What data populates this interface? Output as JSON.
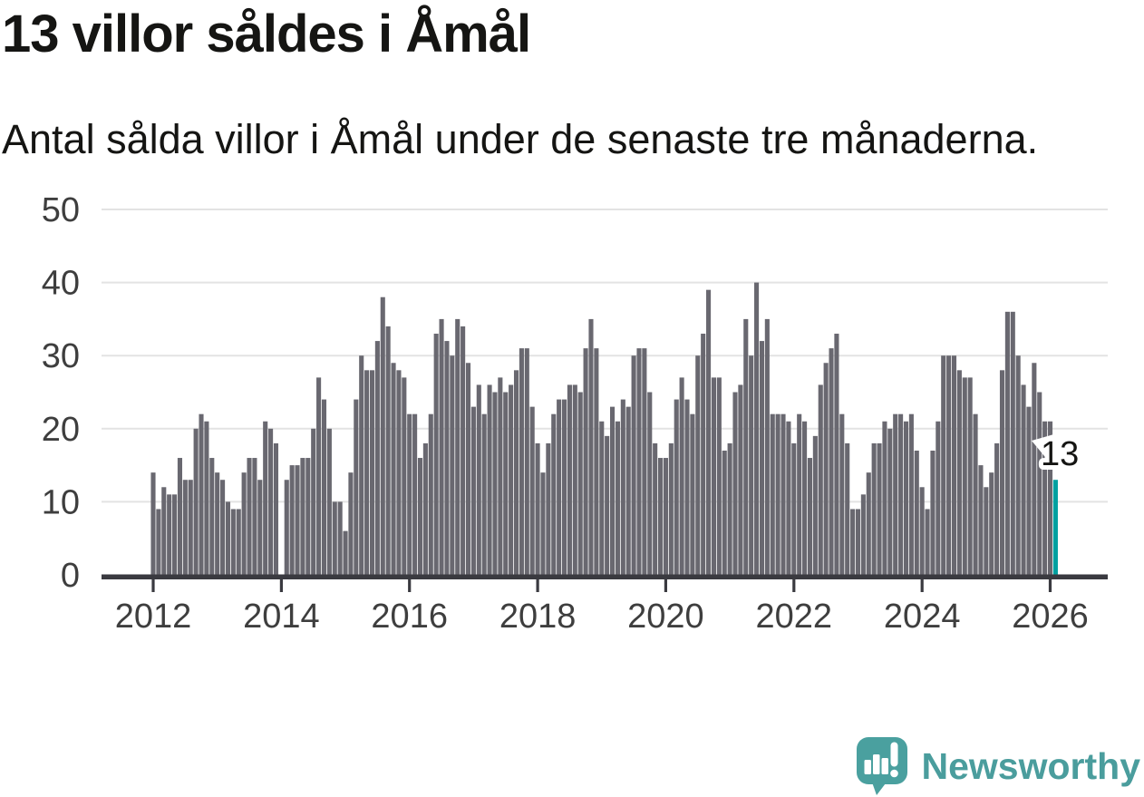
{
  "header": {
    "title": "13 villor såldes i Åmål",
    "subtitle": "Antal sålda villor i Åmål under de senaste tre månaderna."
  },
  "chart_data": {
    "type": "bar",
    "title": "13 villor såldes i Åmål",
    "subtitle": "Antal sålda villor i Åmål under de senaste tre månaderna.",
    "xlabel": "",
    "ylabel": "",
    "x_start": "2012-01",
    "x_end": "2026-02",
    "x_interval": "monthly (rolling 3-month totals)",
    "ylim": [
      0,
      50
    ],
    "y_ticks": [
      0,
      10,
      20,
      30,
      40,
      50
    ],
    "x_tick_years": [
      "2012",
      "2014",
      "2016",
      "2018",
      "2020",
      "2022",
      "2024",
      "2026"
    ],
    "grid": "horizontal",
    "legend": "none",
    "values": [
      14,
      9,
      12,
      11,
      11,
      16,
      13,
      13,
      20,
      22,
      21,
      16,
      14,
      13,
      10,
      9,
      9,
      14,
      16,
      16,
      13,
      21,
      20,
      18,
      0,
      13,
      15,
      15,
      16,
      16,
      20,
      27,
      24,
      20,
      10,
      10,
      6,
      14,
      24,
      30,
      28,
      28,
      32,
      38,
      34,
      29,
      28,
      27,
      22,
      22,
      16,
      18,
      22,
      33,
      35,
      32,
      30,
      35,
      34,
      29,
      23,
      26,
      22,
      26,
      25,
      27,
      25,
      26,
      28,
      31,
      31,
      23,
      18,
      14,
      18,
      22,
      24,
      24,
      26,
      26,
      25,
      31,
      35,
      31,
      21,
      19,
      23,
      21,
      24,
      23,
      30,
      31,
      31,
      25,
      18,
      16,
      16,
      18,
      24,
      27,
      24,
      22,
      30,
      33,
      39,
      27,
      27,
      17,
      18,
      25,
      26,
      35,
      30,
      40,
      32,
      35,
      22,
      22,
      22,
      21,
      18,
      22,
      21,
      16,
      19,
      26,
      29,
      31,
      33,
      22,
      18,
      9,
      9,
      11,
      14,
      18,
      18,
      21,
      20,
      22,
      22,
      21,
      22,
      17,
      12,
      9,
      17,
      21,
      30,
      30,
      30,
      28,
      27,
      27,
      22,
      15,
      12,
      14,
      18,
      28,
      36,
      36,
      30,
      26,
      23,
      29,
      25,
      21,
      21,
      13
    ],
    "highlight": {
      "index": 169,
      "value": 13,
      "label": "13"
    }
  },
  "colors": {
    "bar": "#696870",
    "highlight": "#00a0a0",
    "grid": "#e3e3e3",
    "axis": "#3a3a40",
    "axis_text": "#3e3e3e",
    "text": "#151513",
    "brand": "#4a9d9d",
    "background": "#ffffff"
  },
  "footer": {
    "brand": "Newsworthy",
    "logo_icon": "speech-bubble-bar-chart-icon"
  }
}
